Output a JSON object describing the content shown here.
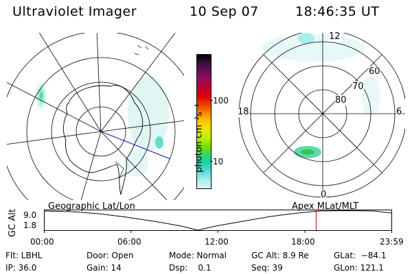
{
  "header": {
    "instrument": "Ultraviolet Imager",
    "date": "10 Sep 07",
    "time": "18:46:35 UT"
  },
  "colorbar": {
    "unit_label": "photon cm⁻²s⁻¹",
    "ticks": [
      "100",
      "10"
    ],
    "colors": [
      "#000000",
      "#3b0f3c",
      "#6a0f5a",
      "#9c0a56",
      "#c0002a",
      "#e00010",
      "#f04000",
      "#f88a00",
      "#fcc800",
      "#e8e800",
      "#b8f000",
      "#70e000",
      "#30d870",
      "#20d0b0",
      "#60dcdc",
      "#a8ecec",
      "#ddf8f8"
    ]
  },
  "left_map": {
    "title": "Geographic Lat/Lon"
  },
  "right_map": {
    "title": "Apex MLat/MLT",
    "lat_labels": [
      "60",
      "70",
      "80"
    ],
    "mlt_labels": {
      "top": "12",
      "left": "18",
      "right": "6",
      "bottom": "0"
    }
  },
  "timeline": {
    "y_label": "GC Alt",
    "y_ticks": [
      "9.0",
      "1.8"
    ],
    "x_ticks": [
      "00:00",
      "06:00",
      "12:00",
      "18:00",
      "23:59"
    ],
    "current_time_fraction": 0.7824,
    "marker_color": "#c00000"
  },
  "info": {
    "filter": "Flt: LBHL",
    "ip": "IP: 36.0",
    "door": "Door: Open",
    "gain": "Gain: 14",
    "mode": "Mode: Normal",
    "dsp": "Dsp:    0.1",
    "gc_alt": "GC Alt: 8.9 Re",
    "seq": "Seq: 39",
    "glat": "GLat:  −84.1",
    "glon": "GLon: 121.1"
  }
}
